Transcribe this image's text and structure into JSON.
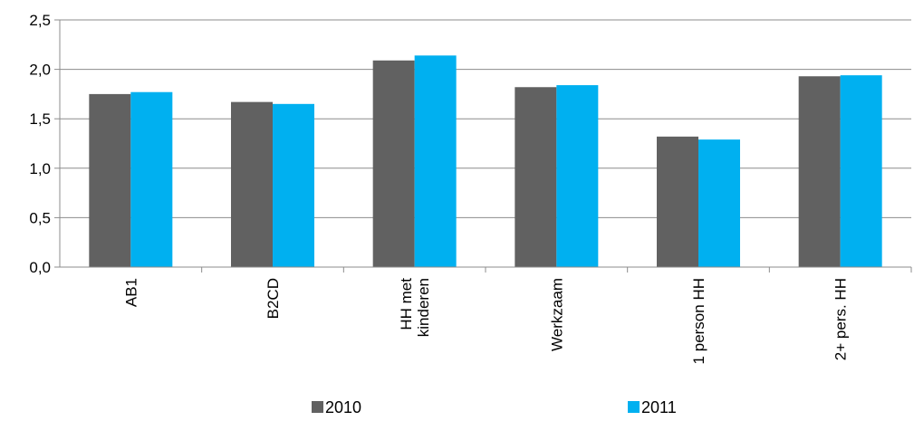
{
  "chart_data": {
    "type": "bar",
    "categories": [
      [
        "AB1"
      ],
      [
        "B2CD"
      ],
      [
        "HH met",
        "kinderen"
      ],
      [
        "Werkzaam"
      ],
      [
        "1 person HH"
      ],
      [
        "2+ pers. HH"
      ]
    ],
    "series": [
      {
        "name": "2010",
        "color": "#616161",
        "values": [
          1.75,
          1.67,
          2.09,
          1.82,
          1.32,
          1.93
        ]
      },
      {
        "name": "2011",
        "color": "#00b0f0",
        "values": [
          1.77,
          1.65,
          2.14,
          1.84,
          1.29,
          1.94
        ]
      }
    ],
    "yticks": [
      "0,0",
      "0,5",
      "1,0",
      "1,5",
      "2,0",
      "2,5"
    ],
    "ylim": [
      0,
      2.5
    ],
    "ystep": 0.5,
    "grid": true,
    "legend_position": "bottom"
  }
}
